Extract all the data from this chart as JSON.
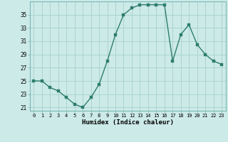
{
  "x": [
    0,
    1,
    2,
    3,
    4,
    5,
    6,
    7,
    8,
    9,
    10,
    11,
    12,
    13,
    14,
    15,
    16,
    17,
    18,
    19,
    20,
    21,
    22,
    23
  ],
  "y": [
    25,
    25,
    24,
    23.5,
    22.5,
    21.5,
    21,
    22.5,
    24.5,
    28,
    32,
    35,
    36,
    36.5,
    36.5,
    36.5,
    36.5,
    28,
    32,
    33.5,
    30.5,
    29,
    28,
    27.5
  ],
  "line_color": "#2e7d6e",
  "marker_color": "#2e7d6e",
  "bg_color": "#cceae8",
  "grid_color": "#aad4d2",
  "xlabel": "Humidex (Indice chaleur)",
  "ylabel": "",
  "xlim": [
    -0.5,
    23.5
  ],
  "ylim": [
    20.5,
    37.0
  ],
  "yticks": [
    21,
    23,
    25,
    27,
    29,
    31,
    33,
    35
  ],
  "xticks": [
    0,
    1,
    2,
    3,
    4,
    5,
    6,
    7,
    8,
    9,
    10,
    11,
    12,
    13,
    14,
    15,
    16,
    17,
    18,
    19,
    20,
    21,
    22,
    23
  ],
  "xtick_labels": [
    "0",
    "1",
    "2",
    "3",
    "4",
    "5",
    "6",
    "7",
    "8",
    "9",
    "10",
    "11",
    "12",
    "13",
    "14",
    "15",
    "16",
    "17",
    "18",
    "19",
    "20",
    "21",
    "22",
    "23"
  ],
  "marker_size": 2.5,
  "line_width": 1.0
}
